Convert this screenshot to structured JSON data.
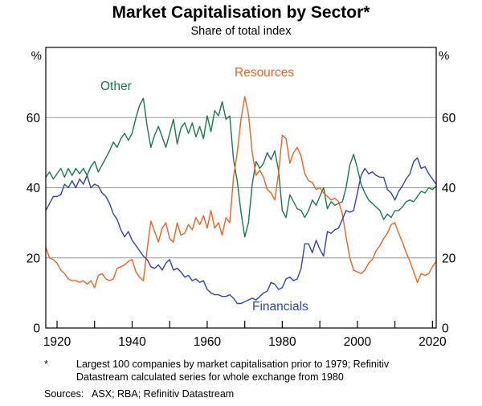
{
  "header": {
    "title": "Market Capitalisation by Sector*",
    "subtitle": "Share of total index"
  },
  "axes": {
    "y_unit_left": "%",
    "y_unit_right": "%",
    "y_ticks": [
      0,
      20,
      40,
      60
    ],
    "y_gridlines": [
      20,
      40,
      60
    ],
    "x_labeled_ticks": [
      1920,
      1940,
      1960,
      1980,
      2000,
      2020
    ],
    "x_minor_ticks": [
      1930,
      1950,
      1970,
      1990,
      2010
    ]
  },
  "series_labels": [
    {
      "id": "other",
      "text": "Other",
      "color": "#177A4C"
    },
    {
      "id": "resources",
      "text": "Resources",
      "color": "#F2601A"
    },
    {
      "id": "financials",
      "text": "Financials",
      "color": "#2F41BD"
    }
  ],
  "chart_data": {
    "type": "line",
    "title": "Market Capitalisation by Sector",
    "subtitle": "Share of total index",
    "unit": "%",
    "xlim": [
      1917,
      2021
    ],
    "ylim": [
      0,
      80
    ],
    "yticks": [
      0,
      20,
      40,
      60
    ],
    "grid": true,
    "legend_position": "inline-labels",
    "x": [
      1917,
      1918,
      1919,
      1920,
      1921,
      1922,
      1923,
      1924,
      1925,
      1926,
      1927,
      1928,
      1929,
      1930,
      1931,
      1932,
      1933,
      1934,
      1935,
      1936,
      1937,
      1938,
      1939,
      1940,
      1941,
      1942,
      1943,
      1944,
      1945,
      1946,
      1947,
      1948,
      1949,
      1950,
      1951,
      1952,
      1953,
      1954,
      1955,
      1956,
      1957,
      1958,
      1959,
      1960,
      1961,
      1962,
      1963,
      1964,
      1965,
      1966,
      1967,
      1968,
      1969,
      1970,
      1971,
      1972,
      1973,
      1974,
      1975,
      1976,
      1977,
      1978,
      1979,
      1980,
      1981,
      1982,
      1983,
      1984,
      1985,
      1986,
      1987,
      1988,
      1989,
      1990,
      1991,
      1992,
      1993,
      1994,
      1995,
      1996,
      1997,
      1998,
      1999,
      2000,
      2001,
      2002,
      2003,
      2004,
      2005,
      2006,
      2007,
      2008,
      2009,
      2010,
      2011,
      2012,
      2013,
      2014,
      2015,
      2016,
      2017,
      2018,
      2019,
      2020,
      2021
    ],
    "series": [
      {
        "name": "Other",
        "color": "#177A4C",
        "values": [
          43,
          44.5,
          42.5,
          44,
          45.5,
          43,
          45.5,
          43.5,
          45.5,
          44,
          45.5,
          43.5,
          46,
          47.5,
          44.5,
          46.5,
          48.5,
          50.5,
          53,
          51.5,
          54,
          55.5,
          53.5,
          55.5,
          60,
          63.5,
          65.5,
          57.5,
          51.5,
          55,
          57.5,
          54.5,
          51.5,
          55.5,
          59.5,
          52.5,
          57,
          58.5,
          55.5,
          58.5,
          54.5,
          57.5,
          54,
          60.5,
          56,
          62,
          60.5,
          64.5,
          59.5,
          60.5,
          48,
          42,
          33,
          26,
          30,
          41,
          47.5,
          45.5,
          47,
          50,
          48,
          50.5,
          45,
          33.5,
          31.5,
          38,
          36,
          34,
          33.5,
          31.5,
          33.5,
          36.5,
          35,
          37.5,
          40,
          34,
          36,
          35,
          35.5,
          36,
          40,
          46.5,
          49.5,
          45.5,
          41,
          38.5,
          36.5,
          35.5,
          34.5,
          33.5,
          31,
          32.5,
          31.5,
          33.5,
          33.5,
          34.5,
          36,
          36.5,
          36,
          37.5,
          39,
          38.5,
          40,
          39.5,
          40.5
        ]
      },
      {
        "name": "Resources",
        "color": "#F2601A",
        "values": [
          23,
          20,
          19.5,
          18.5,
          16.5,
          15.5,
          14,
          13.5,
          13.5,
          13,
          13.5,
          12.5,
          13.5,
          11.5,
          15,
          15.5,
          14,
          13.5,
          14,
          17,
          17.5,
          18,
          19,
          19.5,
          16,
          14.5,
          13.5,
          22.5,
          30.5,
          27.5,
          24.5,
          28.5,
          30,
          25.5,
          24.5,
          30,
          26.5,
          27,
          29.5,
          28,
          31.5,
          29.5,
          32,
          28.5,
          33.5,
          28.5,
          30,
          26.5,
          31.5,
          30,
          43,
          50,
          59.5,
          66,
          61,
          50,
          43.5,
          45,
          43,
          39.5,
          38.5,
          36.5,
          44,
          55,
          54,
          47,
          50,
          51.5,
          49,
          44,
          42,
          41.5,
          39.5,
          40,
          38.5,
          37.5,
          36.5,
          37,
          36,
          32.5,
          26,
          20,
          16.5,
          16,
          15.5,
          16.5,
          18.5,
          19.5,
          22,
          23.5,
          25.5,
          27,
          29.5,
          30,
          27,
          24.5,
          21.5,
          19,
          16,
          13,
          15.5,
          15,
          15.5,
          17.5,
          19
        ]
      },
      {
        "name": "Financials",
        "color": "#2F41BD",
        "values": [
          33.5,
          35.5,
          37.5,
          37.5,
          38,
          41,
          40,
          42,
          40,
          42.5,
          41,
          43.5,
          40,
          41,
          40.5,
          38.5,
          37.5,
          35.5,
          32.5,
          31,
          28,
          26,
          27.5,
          25,
          23.5,
          22,
          20.5,
          19.5,
          17.5,
          17,
          18,
          16.5,
          18.5,
          19.5,
          16.5,
          17,
          16,
          14.5,
          15,
          13.5,
          14,
          13,
          13.5,
          11,
          10,
          9.5,
          9.5,
          9,
          9,
          9.5,
          8.5,
          7,
          7,
          7.5,
          8,
          8.5,
          8,
          9,
          10,
          10.5,
          13,
          12.5,
          11,
          11.5,
          14,
          14.5,
          13.5,
          14,
          17,
          24,
          24,
          21.5,
          25,
          22.5,
          20.5,
          27.5,
          27,
          28,
          28.5,
          31,
          33.5,
          33,
          33.5,
          38.5,
          43.5,
          45.5,
          44,
          44.5,
          43.5,
          43,
          43,
          39.5,
          38.5,
          36.5,
          39,
          40.5,
          42.5,
          44,
          47.5,
          48.5,
          45.5,
          46,
          44,
          42.5,
          41
        ]
      }
    ]
  },
  "footnote": {
    "marker": "*",
    "line1": "Largest 100 companies by market capitalisation prior to 1979; Refinitiv",
    "line2": "Datastream calculated series for whole exchange from 1980"
  },
  "sources": {
    "text": "Sources:   ASX; RBA; Refinitiv Datastream"
  }
}
